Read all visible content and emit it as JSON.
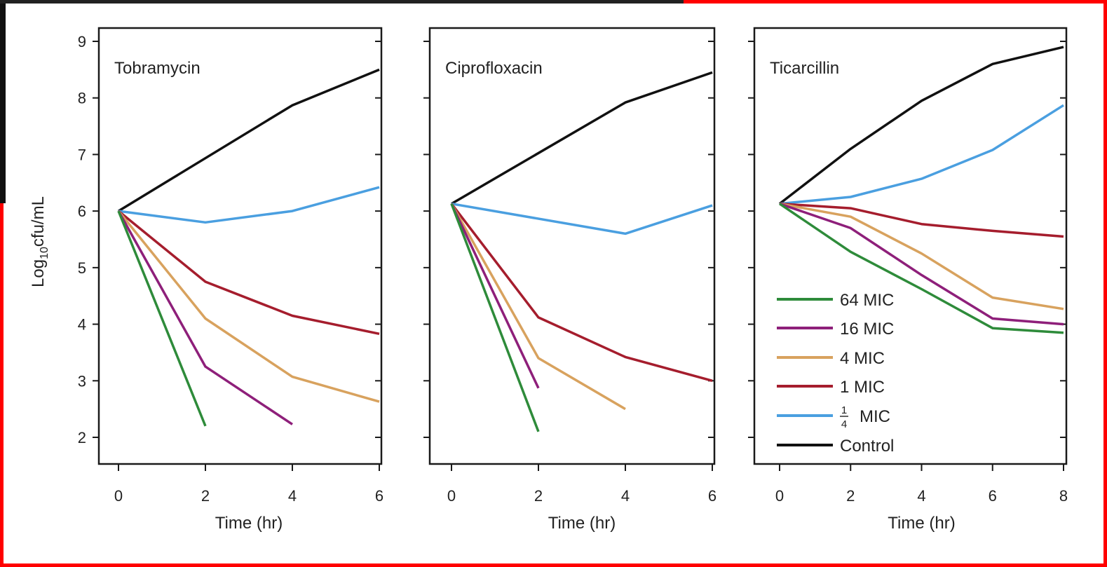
{
  "chart_data": {
    "type": "line",
    "ylabel": {
      "base": "Log",
      "sub": "10",
      "rest": "cfu/mL"
    },
    "ylim": [
      2,
      9
    ],
    "yticks": [
      2,
      3,
      4,
      5,
      6,
      7,
      8,
      9
    ],
    "xlabel": "Time (hr)",
    "legend": [
      {
        "key": "64",
        "label": "64 MIC",
        "color": "#2e8b3a"
      },
      {
        "key": "16",
        "label": "16 MIC",
        "color": "#8e1f7a"
      },
      {
        "key": "4",
        "label": "4 MIC",
        "color": "#d8a25e"
      },
      {
        "key": "1",
        "label": "1 MIC",
        "color": "#a51d2d"
      },
      {
        "key": "q",
        "label": "MIC",
        "fraction": [
          "1",
          "4"
        ],
        "color": "#4a9fe0"
      },
      {
        "key": "c",
        "label": "Control",
        "color": "#111111"
      }
    ],
    "legend_position": "lower-center of third panel",
    "panels": [
      {
        "title": "Tobramycin",
        "xlim": [
          0,
          6
        ],
        "xticks": [
          0,
          2,
          4,
          6
        ],
        "series": [
          {
            "key": "c",
            "x": [
              0,
              4,
              6
            ],
            "y": [
              6.0,
              7.87,
              8.5
            ]
          },
          {
            "key": "q",
            "x": [
              0,
              2,
              4,
              6
            ],
            "y": [
              6.0,
              5.8,
              6.0,
              6.42
            ]
          },
          {
            "key": "1",
            "x": [
              0,
              2,
              4,
              6
            ],
            "y": [
              6.0,
              4.75,
              4.15,
              3.83
            ]
          },
          {
            "key": "4",
            "x": [
              0,
              2,
              4,
              6
            ],
            "y": [
              6.0,
              4.1,
              3.07,
              2.63
            ]
          },
          {
            "key": "16",
            "x": [
              0,
              2,
              4
            ],
            "y": [
              6.0,
              3.25,
              2.23
            ]
          },
          {
            "key": "64",
            "x": [
              0,
              2
            ],
            "y": [
              6.0,
              2.2
            ]
          }
        ]
      },
      {
        "title": "Ciprofloxacin",
        "xlim": [
          0,
          6
        ],
        "xticks": [
          0,
          2,
          4,
          6
        ],
        "series": [
          {
            "key": "c",
            "x": [
              0,
              4,
              6
            ],
            "y": [
              6.13,
              7.92,
              8.45
            ]
          },
          {
            "key": "q",
            "x": [
              0,
              4,
              6
            ],
            "y": [
              6.13,
              5.6,
              6.1
            ]
          },
          {
            "key": "1",
            "x": [
              0,
              2,
              4,
              6
            ],
            "y": [
              6.13,
              4.12,
              3.42,
              3.0
            ]
          },
          {
            "key": "4",
            "x": [
              0,
              2,
              4
            ],
            "y": [
              6.13,
              3.4,
              2.5
            ]
          },
          {
            "key": "16",
            "x": [
              0,
              2
            ],
            "y": [
              6.13,
              2.87
            ]
          },
          {
            "key": "64",
            "x": [
              0,
              2
            ],
            "y": [
              6.13,
              2.1
            ]
          }
        ]
      },
      {
        "title": "Ticarcillin",
        "xlim": [
          0,
          8
        ],
        "xticks": [
          0,
          2,
          4,
          6,
          8
        ],
        "series": [
          {
            "key": "c",
            "x": [
              0,
              2,
              4,
              6,
              8
            ],
            "y": [
              6.13,
              7.1,
              7.95,
              8.6,
              8.9
            ]
          },
          {
            "key": "q",
            "x": [
              0,
              2,
              4,
              6,
              8
            ],
            "y": [
              6.13,
              6.25,
              6.57,
              7.08,
              7.87
            ]
          },
          {
            "key": "1",
            "x": [
              0,
              2,
              4,
              6,
              8
            ],
            "y": [
              6.13,
              6.05,
              5.77,
              5.65,
              5.55
            ]
          },
          {
            "key": "4",
            "x": [
              0,
              2,
              4,
              6,
              8
            ],
            "y": [
              6.13,
              5.9,
              5.25,
              4.47,
              4.27
            ]
          },
          {
            "key": "16",
            "x": [
              0,
              2,
              4,
              6,
              8
            ],
            "y": [
              6.13,
              5.7,
              4.87,
              4.1,
              4.0
            ]
          },
          {
            "key": "64",
            "x": [
              0,
              2,
              4,
              6,
              8
            ],
            "y": [
              6.13,
              5.28,
              4.62,
              3.93,
              3.85
            ]
          }
        ]
      }
    ]
  }
}
